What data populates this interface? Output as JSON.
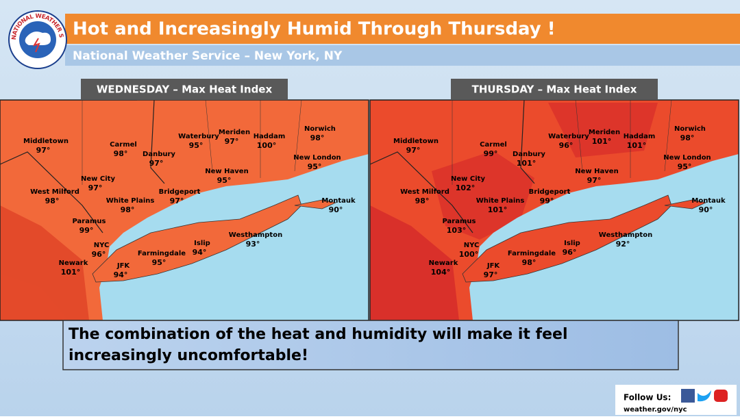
{
  "logo": {
    "text": "NATIONAL WEATHER SERVICE"
  },
  "header": {
    "title": "Hot and Increasingly Humid Through Thursday !",
    "subtitle": "National Weather Service – New York, NY"
  },
  "panels": [
    {
      "title": "WEDNESDAY – Max Heat Index",
      "cities": [
        {
          "name": "Middletown",
          "value": "97°"
        },
        {
          "name": "Carmel",
          "value": "98°"
        },
        {
          "name": "Danbury",
          "value": "97°"
        },
        {
          "name": "Waterbury",
          "value": "95°"
        },
        {
          "name": "Meriden",
          "value": "97°"
        },
        {
          "name": "Haddam",
          "value": "100°"
        },
        {
          "name": "Norwich",
          "value": "98°"
        },
        {
          "name": "New London",
          "value": "95°"
        },
        {
          "name": "New Haven",
          "value": "95°"
        },
        {
          "name": "New City",
          "value": "97°"
        },
        {
          "name": "West Milford",
          "value": "98°"
        },
        {
          "name": "White Plains",
          "value": "98°"
        },
        {
          "name": "Bridgeport",
          "value": "97°"
        },
        {
          "name": "Paramus",
          "value": "99°"
        },
        {
          "name": "NYC",
          "value": "96°"
        },
        {
          "name": "Newark",
          "value": "101°"
        },
        {
          "name": "JFK",
          "value": "94°"
        },
        {
          "name": "Farmingdale",
          "value": "95°"
        },
        {
          "name": "Islip",
          "value": "94°"
        },
        {
          "name": "Westhampton",
          "value": "93°"
        },
        {
          "name": "Montauk",
          "value": "90°"
        }
      ]
    },
    {
      "title": "THURSDAY – Max Heat Index",
      "cities": [
        {
          "name": "Middletown",
          "value": "97°"
        },
        {
          "name": "Carmel",
          "value": "99°"
        },
        {
          "name": "Danbury",
          "value": "101°"
        },
        {
          "name": "Waterbury",
          "value": "96°"
        },
        {
          "name": "Meriden",
          "value": "101°"
        },
        {
          "name": "Haddam",
          "value": "101°"
        },
        {
          "name": "Norwich",
          "value": "98°"
        },
        {
          "name": "New London",
          "value": "95°"
        },
        {
          "name": "New Haven",
          "value": "97°"
        },
        {
          "name": "New City",
          "value": "102°"
        },
        {
          "name": "West Milford",
          "value": "98°"
        },
        {
          "name": "White Plains",
          "value": "101°"
        },
        {
          "name": "Bridgeport",
          "value": "99°"
        },
        {
          "name": "Paramus",
          "value": "103°"
        },
        {
          "name": "NYC",
          "value": "100°"
        },
        {
          "name": "Newark",
          "value": "104°"
        },
        {
          "name": "JFK",
          "value": "97°"
        },
        {
          "name": "Farmingdale",
          "value": "98°"
        },
        {
          "name": "Islip",
          "value": "96°"
        },
        {
          "name": "Westhampton",
          "value": "92°"
        },
        {
          "name": "Montauk",
          "value": "90°"
        }
      ]
    }
  ],
  "message": {
    "line1": "The combination of the heat and humidity will make it feel",
    "line2": "increasingly uncomfortable!"
  },
  "footer": {
    "follow": "Follow Us:",
    "url": "weather.gov/nyc"
  }
}
